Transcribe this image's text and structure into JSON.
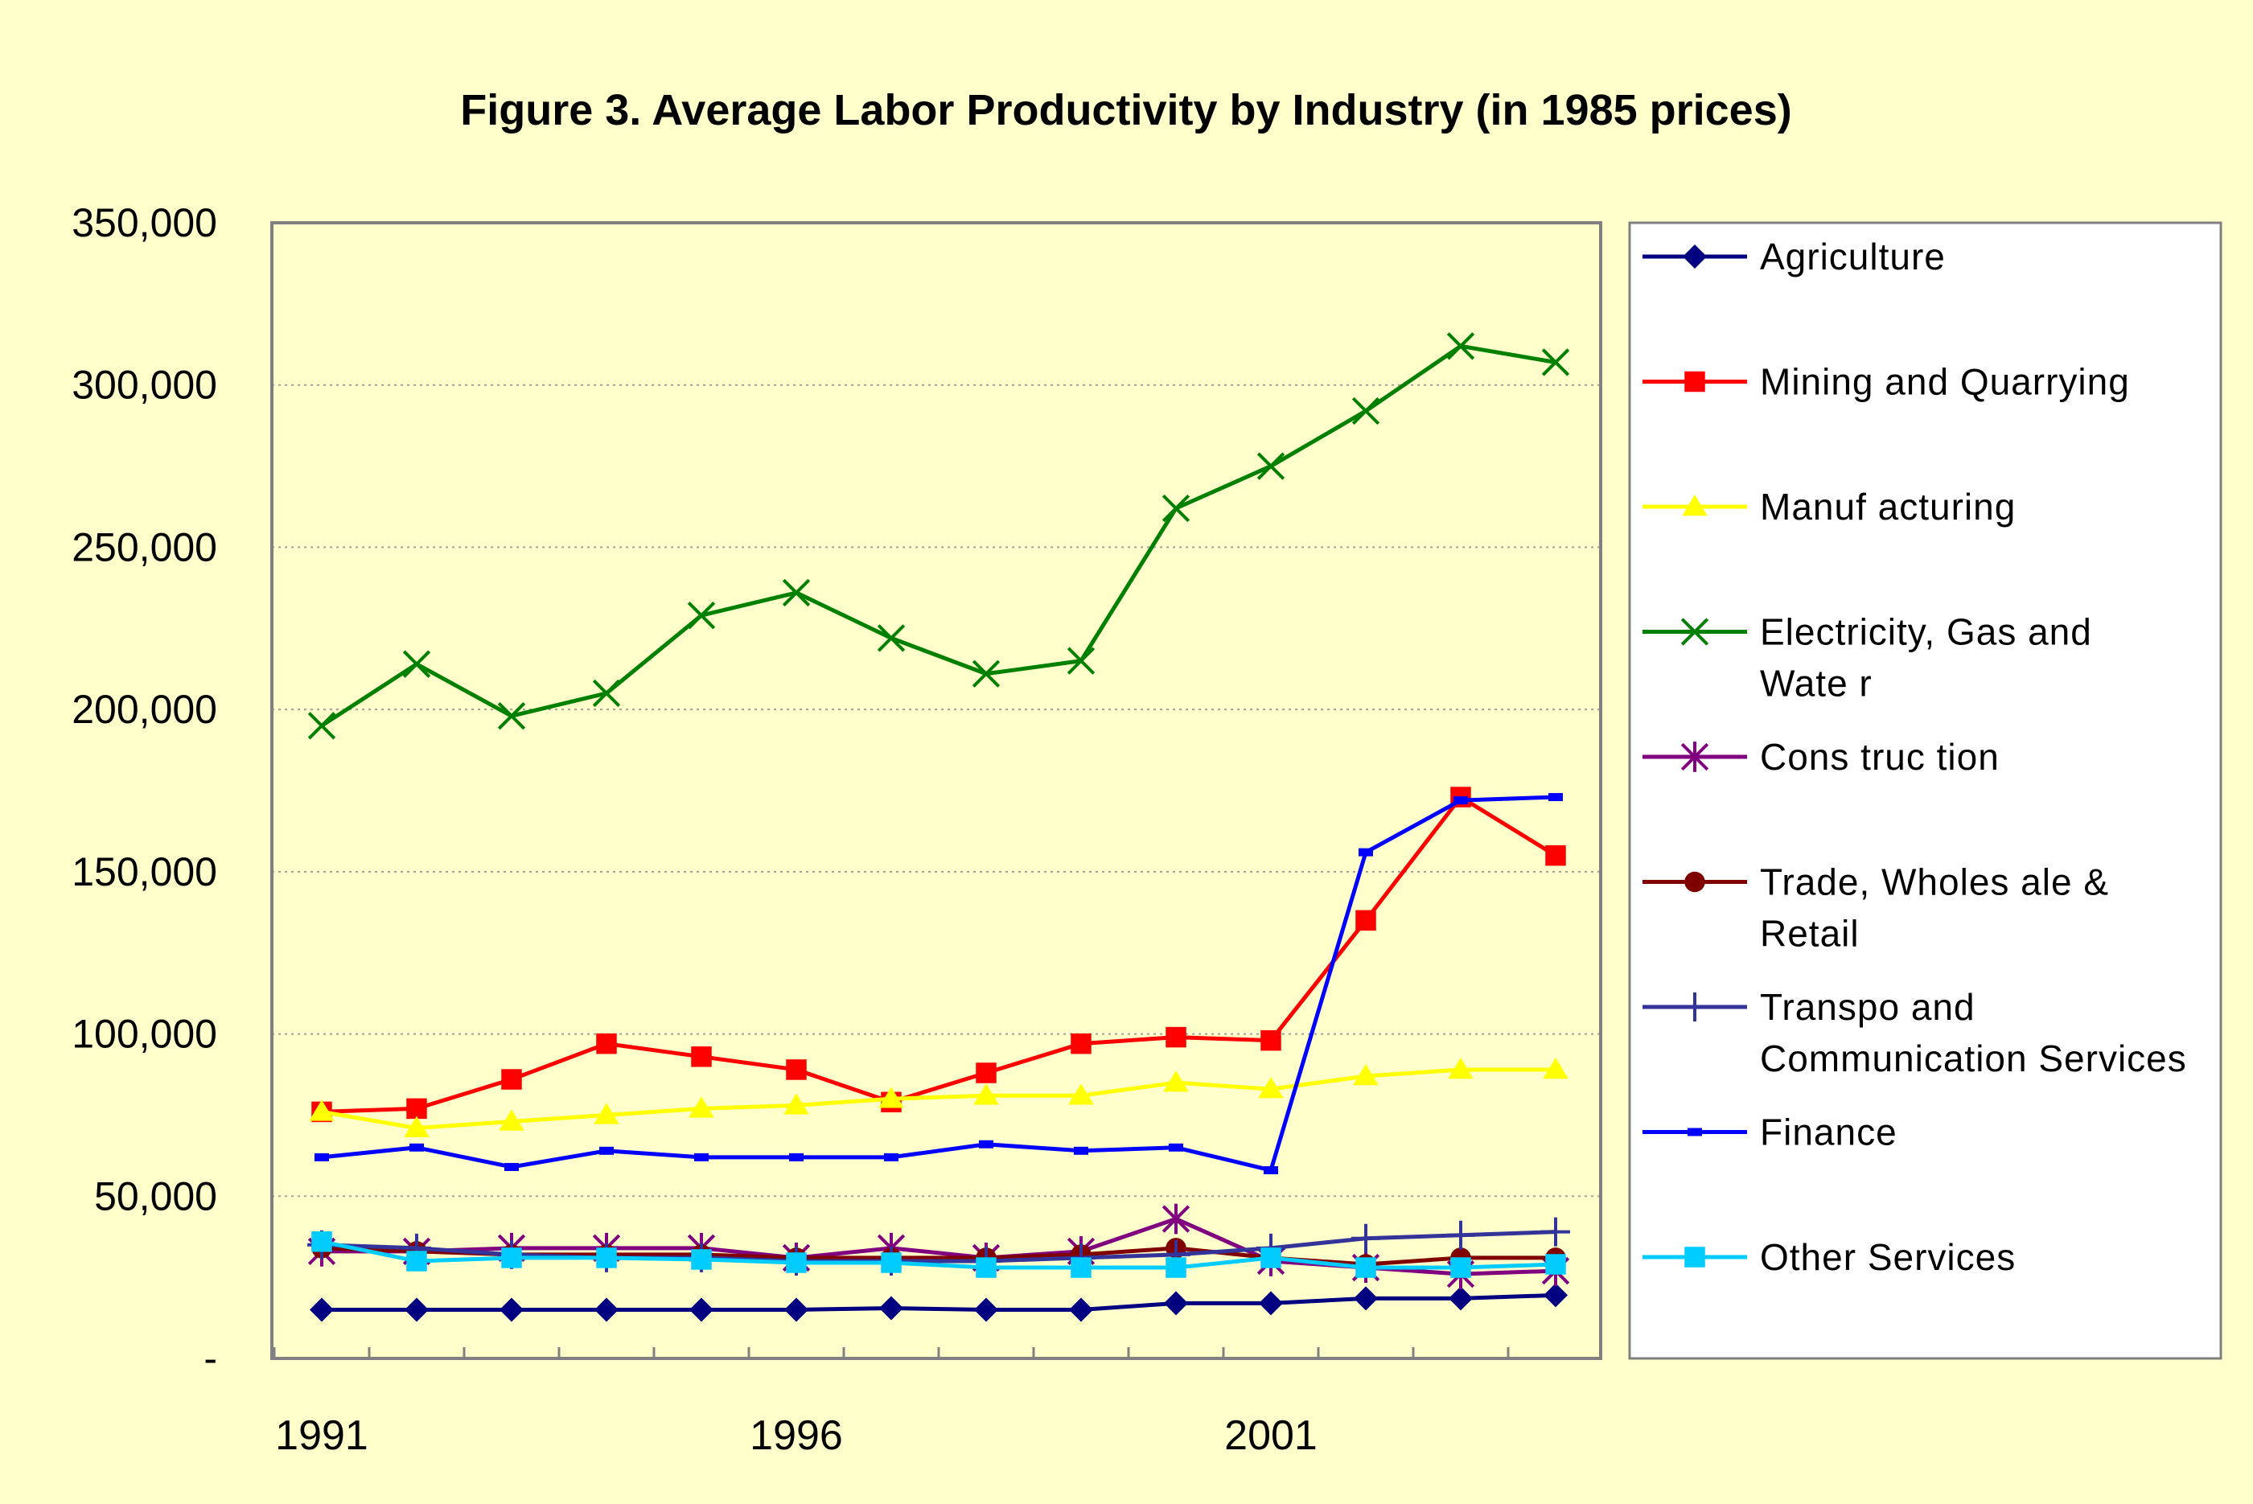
{
  "chart_data": {
    "type": "line",
    "title": "Figure 3. Average Labor Productivity by Industry (in 1985 prices)",
    "xlabel": "",
    "ylabel": "",
    "ylim": [
      0,
      350000
    ],
    "y_ticks": [
      {
        "value": 0,
        "label": "-"
      },
      {
        "value": 50000,
        "label": "50,000"
      },
      {
        "value": 100000,
        "label": "100,000"
      },
      {
        "value": 150000,
        "label": "150,000"
      },
      {
        "value": 200000,
        "label": "200,000"
      },
      {
        "value": 250000,
        "label": "250,000"
      },
      {
        "value": 300000,
        "label": "300,000"
      },
      {
        "value": 350000,
        "label": "350,000"
      }
    ],
    "x": [
      1991,
      1992,
      1993,
      1994,
      1995,
      1996,
      1997,
      1998,
      1999,
      2000,
      2001,
      2002,
      2003,
      2004
    ],
    "x_tick_labels": [
      {
        "value": 1991,
        "label": "1991"
      },
      {
        "value": 1996,
        "label": "1996"
      },
      {
        "value": 2001,
        "label": "2001"
      }
    ],
    "grid": {
      "horizontal": true,
      "vertical": false,
      "style": "dotted"
    },
    "legend_position": "right",
    "series": [
      {
        "name": "Agriculture",
        "name_lines": [
          "Agriculture"
        ],
        "color": "#000080",
        "marker": "diamond",
        "values": [
          15000,
          15000,
          15000,
          15000,
          15000,
          15000,
          15500,
          15000,
          15000,
          17000,
          17000,
          18500,
          18500,
          19500
        ]
      },
      {
        "name": "Mining and Quarrying",
        "name_lines": [
          "Mining and Quarrying"
        ],
        "color": "#FF0000",
        "marker": "square",
        "values": [
          76000,
          77000,
          86000,
          97000,
          93000,
          89000,
          79000,
          88000,
          97000,
          99000,
          98000,
          135000,
          173000,
          155000
        ]
      },
      {
        "name": "Manufacturing",
        "name_lines": [
          "Manuf acturing"
        ],
        "color": "#FFFF00",
        "marker": "triangle",
        "values": [
          76000,
          71000,
          73000,
          75000,
          77000,
          78000,
          80000,
          81000,
          81000,
          85000,
          83000,
          87000,
          89000,
          89000
        ]
      },
      {
        "name": "Electricity, Gas and Water",
        "name_lines": [
          "Electricity, Gas  and",
          "Wate r"
        ],
        "color": "#008000",
        "marker": "x",
        "values": [
          195000,
          214000,
          198000,
          205000,
          229000,
          236000,
          222000,
          211000,
          215000,
          262000,
          275000,
          292000,
          312000,
          307000
        ]
      },
      {
        "name": "Construction",
        "name_lines": [
          "Cons truc tion"
        ],
        "color": "#800080",
        "marker": "asterisk",
        "values": [
          33000,
          33000,
          34000,
          34000,
          34000,
          31000,
          34000,
          31000,
          33000,
          43000,
          30000,
          28000,
          26000,
          27000
        ]
      },
      {
        "name": "Trade, Wholesale & Retail",
        "name_lines": [
          "Trade, Wholes ale  &",
          "Retail"
        ],
        "color": "#800000",
        "marker": "circle",
        "values": [
          34000,
          33000,
          32000,
          32000,
          32000,
          31000,
          31000,
          31000,
          32000,
          34000,
          31000,
          29000,
          31000,
          31000
        ]
      },
      {
        "name": "Transpo and Communication Services",
        "name_lines": [
          "Transpo and",
          "Communication Services"
        ],
        "color": "#333399",
        "marker": "plus",
        "values": [
          35000,
          34000,
          32000,
          31000,
          31000,
          30000,
          30000,
          30000,
          31000,
          32000,
          34000,
          37000,
          38000,
          39000
        ]
      },
      {
        "name": "Finance",
        "name_lines": [
          "Finance"
        ],
        "color": "#0000FF",
        "marker": "dash",
        "values": [
          62000,
          65000,
          59000,
          64000,
          62000,
          62000,
          62000,
          66000,
          64000,
          65000,
          58000,
          156000,
          172000,
          173000
        ]
      },
      {
        "name": "Other Services",
        "name_lines": [
          "Other Services"
        ],
        "color": "#00CCFF",
        "marker": "square",
        "values": [
          36000,
          30000,
          31000,
          31000,
          30500,
          29500,
          29500,
          28000,
          28000,
          28000,
          31000,
          28000,
          28000,
          29000
        ]
      }
    ]
  }
}
